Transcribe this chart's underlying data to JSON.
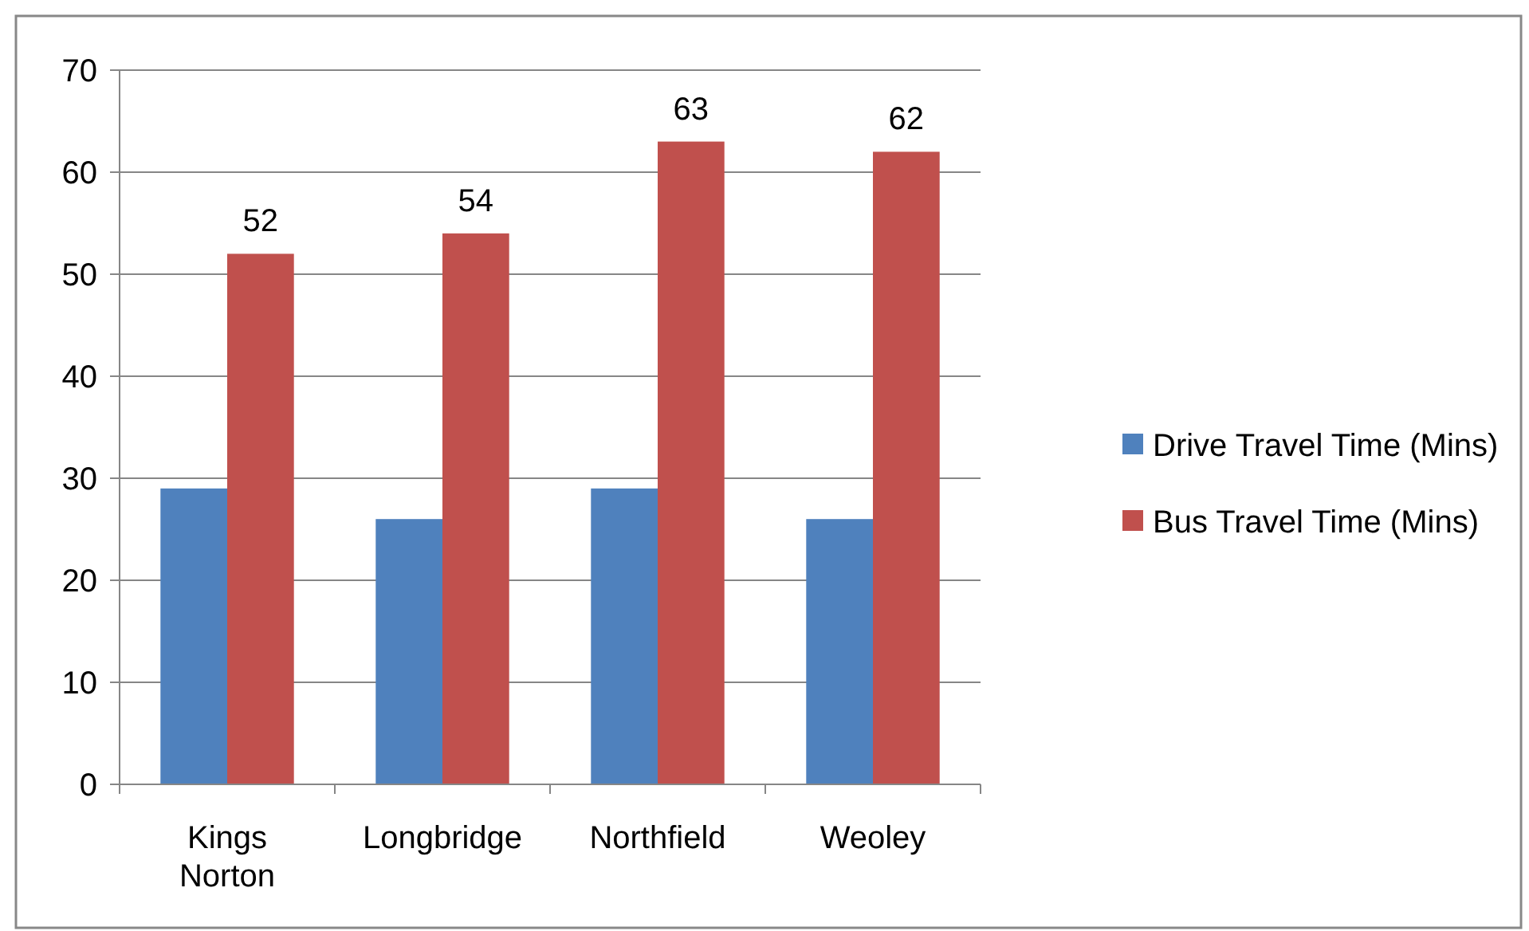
{
  "chart_data": {
    "type": "bar",
    "categories": [
      "Kings Norton",
      "Longbridge",
      "Northfield",
      "Weoley"
    ],
    "series": [
      {
        "name": "Drive Travel Time (Mins)",
        "color": "#4f81bd",
        "values": [
          29,
          26,
          29,
          26
        ]
      },
      {
        "name": "Bus Travel Time (Mins)",
        "color": "#c0504d",
        "values": [
          52,
          54,
          63,
          62
        ],
        "value_labels": [
          "52",
          "54",
          "63",
          "62"
        ]
      }
    ],
    "ylim": [
      0,
      70
    ],
    "yticks": [
      0,
      10,
      20,
      30,
      40,
      50,
      60,
      70
    ],
    "grid": "y",
    "legend": "right"
  }
}
